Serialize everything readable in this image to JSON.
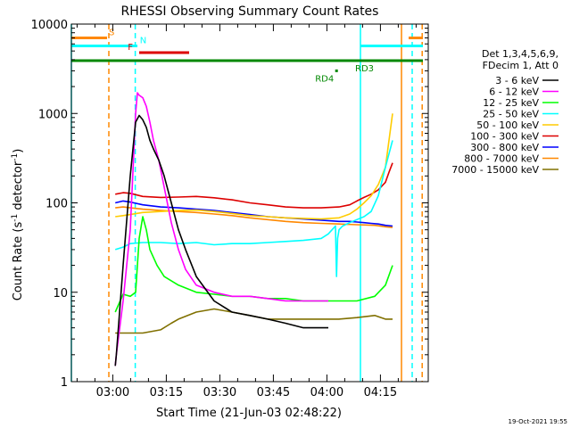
{
  "chart_data": {
    "type": "line",
    "title": "RHESSI Observing Summary Count Rates",
    "xlabel": "Start Time (21-Jun-03 02:48:22)",
    "ylabel_main": "Count Rate (s",
    "ylabel_sup": "-1",
    "ylabel_mid": " detector",
    "ylabel_sup2": "-1",
    "ylabel_end": ")",
    "x_unit": "minutes since 02:48:22",
    "y_scale": "log",
    "ylim": [
      1,
      10000
    ],
    "xlim": [
      0,
      100
    ],
    "x_ticks": [
      {
        "value": 11.6,
        "label": "03:00"
      },
      {
        "value": 26.6,
        "label": "03:15"
      },
      {
        "value": 41.6,
        "label": "03:30"
      },
      {
        "value": 56.6,
        "label": "03:45"
      },
      {
        "value": 71.6,
        "label": "04:00"
      },
      {
        "value": 86.6,
        "label": "04:15"
      }
    ],
    "y_ticks": [
      {
        "value": 1,
        "label": "1"
      },
      {
        "value": 10,
        "label": "10"
      },
      {
        "value": 100,
        "label": "100"
      },
      {
        "value": 1000,
        "label": "1000"
      },
      {
        "value": 10000,
        "label": "10000"
      }
    ],
    "legend_header": [
      "Det 1,3,4,5,6,9,",
      "FDecim 1, Att 0"
    ],
    "series": [
      {
        "name": "3 - 6 keV",
        "color": "#000000",
        "x": [
          12.3,
          12.6,
          14.5,
          16.5,
          18,
          19,
          20,
          21,
          22,
          23,
          24.5,
          26,
          28,
          30,
          32,
          35,
          40,
          45,
          50,
          55,
          60,
          65,
          70,
          72
        ],
        "y": [
          1.5,
          2,
          20,
          200,
          800,
          950,
          850,
          700,
          500,
          400,
          300,
          200,
          100,
          50,
          30,
          15,
          8,
          6,
          5.5,
          5,
          4.5,
          4,
          4,
          4
        ]
      },
      {
        "name": "6 - 12 keV",
        "color": "#ff00ff",
        "x": [
          12.3,
          12.6,
          14.5,
          16.5,
          18,
          18.5,
          19,
          20,
          21,
          22,
          23,
          24.5,
          26,
          28,
          30,
          32,
          35,
          40,
          45,
          50,
          55,
          60,
          65,
          70,
          72
        ],
        "y": [
          1.5,
          2,
          8,
          50,
          1000,
          1700,
          1600,
          1500,
          1200,
          800,
          500,
          300,
          150,
          60,
          30,
          18,
          12,
          10,
          9,
          9,
          8.5,
          8,
          8,
          8,
          8
        ]
      },
      {
        "name": "12 - 25 keV",
        "color": "#00ff00",
        "x": [
          12.3,
          14.5,
          16.5,
          18,
          19,
          20,
          21,
          22,
          24,
          26,
          30,
          35,
          40,
          45,
          50,
          55,
          60,
          65,
          70,
          75,
          80,
          85,
          88,
          90
        ],
        "y": [
          6,
          9.5,
          9,
          10,
          40,
          70,
          50,
          30,
          20,
          15,
          12,
          10,
          9.5,
          9,
          9,
          8.5,
          8.5,
          8,
          8,
          8,
          8,
          9,
          12,
          20
        ]
      },
      {
        "name": "25 - 50 keV",
        "color": "#00ffff",
        "x": [
          12.3,
          14.5,
          16.5,
          20,
          25,
          30,
          35,
          40,
          45,
          50,
          55,
          60,
          65,
          70,
          72,
          74,
          74.3,
          74.6,
          75,
          76,
          78,
          80,
          82,
          84,
          86,
          88,
          90
        ],
        "y": [
          30,
          32,
          35,
          36,
          36,
          35,
          36,
          34,
          35,
          35,
          36,
          37,
          38,
          40,
          45,
          55,
          15,
          40,
          50,
          55,
          60,
          65,
          70,
          80,
          120,
          250,
          500
        ]
      },
      {
        "name": "50 - 100 keV",
        "color": "#ffcc00",
        "x": [
          12.3,
          14.5,
          16.5,
          20,
          25,
          30,
          35,
          40,
          45,
          50,
          55,
          60,
          65,
          70,
          75,
          78,
          80,
          82,
          84,
          86,
          88,
          89,
          90
        ],
        "y": [
          70,
          72,
          74,
          78,
          80,
          82,
          83,
          80,
          76,
          72,
          70,
          68,
          67,
          66,
          68,
          75,
          85,
          100,
          120,
          160,
          250,
          500,
          1000
        ]
      },
      {
        "name": "100 - 300 keV",
        "color": "#dd0000",
        "x": [
          12.3,
          14.5,
          16.5,
          20,
          25,
          30,
          35,
          40,
          45,
          50,
          55,
          60,
          65,
          70,
          75,
          78,
          80,
          82,
          84,
          86,
          88,
          89,
          90
        ],
        "y": [
          125,
          130,
          128,
          118,
          115,
          116,
          118,
          114,
          108,
          100,
          95,
          90,
          88,
          88,
          90,
          95,
          105,
          115,
          125,
          140,
          170,
          220,
          280
        ]
      },
      {
        "name": "300 - 800 keV",
        "color": "#0000ff",
        "x": [
          12.3,
          14.5,
          16.5,
          20,
          25,
          30,
          35,
          40,
          45,
          50,
          55,
          60,
          65,
          70,
          75,
          78,
          80,
          82,
          84,
          86,
          88,
          90
        ],
        "y": [
          100,
          105,
          102,
          95,
          90,
          88,
          85,
          82,
          78,
          74,
          70,
          68,
          66,
          64,
          62,
          62,
          61,
          60,
          59,
          58,
          56,
          55
        ]
      },
      {
        "name": "800 - 7000 keV",
        "color": "#ff8800",
        "x": [
          12.3,
          14.5,
          16.5,
          20,
          25,
          30,
          35,
          40,
          45,
          50,
          55,
          60,
          65,
          70,
          75,
          80,
          85,
          88,
          90
        ],
        "y": [
          88,
          90,
          88,
          85,
          82,
          80,
          78,
          75,
          72,
          68,
          65,
          62,
          60,
          59,
          58,
          57,
          56,
          54,
          53
        ]
      },
      {
        "name": "7000 - 15000 keV",
        "color": "#807000",
        "x": [
          12.3,
          14.5,
          16.5,
          20,
          25,
          28,
          30,
          35,
          40,
          45,
          50,
          55,
          60,
          65,
          70,
          75,
          80,
          85,
          88,
          90
        ],
        "y": [
          3.5,
          3.5,
          3.5,
          3.5,
          3.8,
          4.5,
          5,
          6,
          6.5,
          6,
          5.5,
          5,
          5,
          5,
          5,
          5,
          5.2,
          5.5,
          5,
          5
        ]
      }
    ],
    "state_bars": [
      {
        "label": "S",
        "color": "#ff8800",
        "x_start": 0,
        "x_end": 10,
        "y": 7000,
        "label_x": 10.5
      },
      {
        "label": "S",
        "color": "#ff8800",
        "x_start": 94.5,
        "x_end": 98.5,
        "y": 7000,
        "label_x": null
      },
      {
        "label": "N",
        "color": "#00ffff",
        "x_start": 0,
        "x_end": 18.5,
        "y": 5700,
        "label_x": 19.2
      },
      {
        "label": "N",
        "color": "#00ffff",
        "x_start": 81,
        "x_end": 98.5,
        "y": 5700,
        "label_x": null
      },
      {
        "label": "F",
        "color": "#dd0000",
        "x_start": 19,
        "x_end": 33,
        "y": 4800,
        "label_x": 15.8
      },
      {
        "label": "",
        "color": "#008800",
        "x_start": 0,
        "x_end": 98.5,
        "y": 3900,
        "label_x": null
      }
    ],
    "annotations": [
      {
        "text": "RD4",
        "color": "#008800",
        "x": 68.3,
        "y": 3000,
        "dot_x": 74.3,
        "dot_y": 3000
      },
      {
        "text": "RD3",
        "color": "#008800",
        "x": 79.5,
        "y": 3900,
        "dot_x": 78.6,
        "dot_y": 3900
      }
    ],
    "vertical_lines": [
      {
        "x": 0,
        "color": "#00ffff",
        "style": "solid"
      },
      {
        "x": 10.5,
        "color": "#ff8800",
        "style": "dashed"
      },
      {
        "x": 17.9,
        "color": "#00ffff",
        "style": "dashed"
      },
      {
        "x": 81,
        "color": "#00ffff",
        "style": "solid"
      },
      {
        "x": 92.5,
        "color": "#ff8800",
        "style": "solid"
      },
      {
        "x": 95.5,
        "color": "#00ffff",
        "style": "dashed"
      },
      {
        "x": 98.3,
        "color": "#ff8800",
        "style": "dashed"
      }
    ],
    "timestamp": "19-Oct-2021 19:55"
  }
}
